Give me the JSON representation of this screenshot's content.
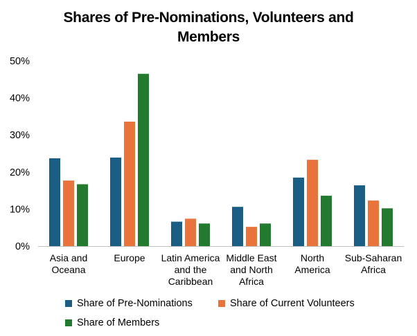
{
  "chart_data": {
    "type": "bar",
    "title_lines": [
      "Shares of Pre-Nominations, Volunteers and",
      "Members"
    ],
    "categories": [
      [
        "Asia and",
        "Oceana"
      ],
      [
        "Europe"
      ],
      [
        "Latin America",
        "and the",
        "Caribbean"
      ],
      [
        "Middle East",
        "and North",
        "Africa"
      ],
      [
        "North",
        "America"
      ],
      [
        "Sub-Saharan",
        "Africa"
      ]
    ],
    "series": [
      {
        "name": "Share of Pre-Nominations",
        "color": "#1a5d85",
        "values": [
          23.7,
          23.9,
          6.6,
          10.6,
          18.5,
          16.4
        ]
      },
      {
        "name": "Share of Current Volunteers",
        "color": "#e8743b",
        "values": [
          17.7,
          33.6,
          7.4,
          5.2,
          23.3,
          12.3
        ]
      },
      {
        "name": "Share of Members",
        "color": "#217a2e",
        "values": [
          16.7,
          46.5,
          6.1,
          6.1,
          13.6,
          10.2
        ]
      }
    ],
    "ylim": [
      0,
      50
    ],
    "yticks": [
      "0%",
      "10%",
      "20%",
      "30%",
      "40%",
      "50%"
    ],
    "grid": false,
    "legend_position": "bottom"
  }
}
